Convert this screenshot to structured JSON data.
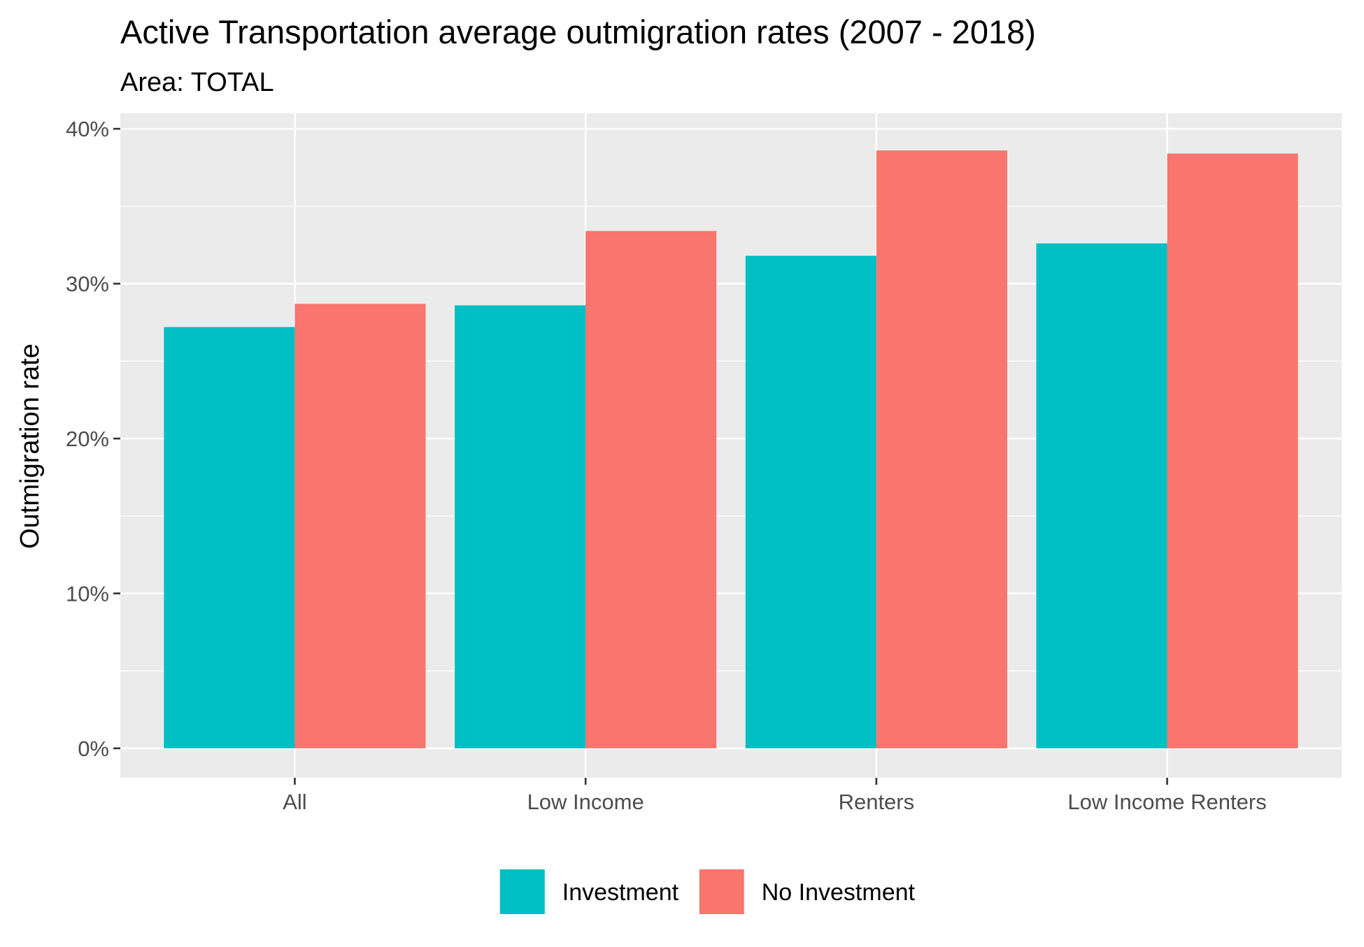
{
  "chart_data": {
    "type": "bar",
    "title": "Active Transportation average outmigration rates (2007 - 2018)",
    "subtitle": "Area: TOTAL",
    "xlabel": "",
    "ylabel": "Outmigration rate",
    "categories": [
      "All",
      "Low Income",
      "Renters",
      "Low Income Renters"
    ],
    "series": [
      {
        "name": "Investment",
        "values": [
          27.2,
          28.6,
          31.8,
          32.6
        ],
        "color": "#00BFC4"
      },
      {
        "name": "No Investment",
        "values": [
          28.7,
          33.4,
          38.6,
          38.4
        ],
        "color": "#F8766D"
      }
    ],
    "ylim": [
      -1.9,
      41.0
    ],
    "yticks": [
      0,
      10,
      20,
      30,
      40
    ],
    "ytick_labels": [
      "0%",
      "10%",
      "20%",
      "30%",
      "40%"
    ],
    "y_minor": [
      5,
      15,
      25,
      35
    ],
    "grid": true,
    "legend": "bottom",
    "panel_background": "#EBEBEB",
    "grid_color": "#FFFFFF"
  }
}
